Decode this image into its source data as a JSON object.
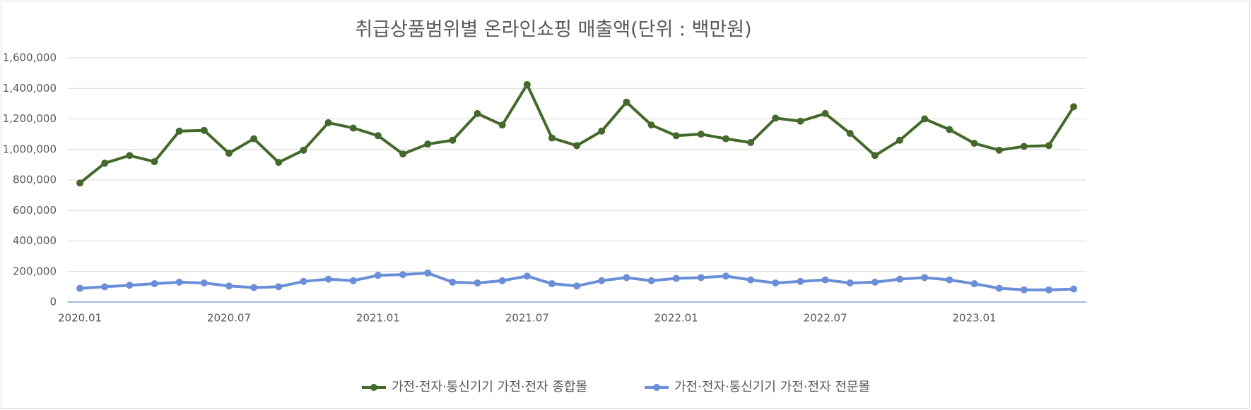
{
  "chart_data": {
    "type": "line",
    "title": "취급상품범위별 온라인쇼핑 매출액(단위 : 백만원)",
    "categories": [
      "2020.01",
      null,
      null,
      null,
      null,
      null,
      "2020.07",
      null,
      null,
      null,
      null,
      null,
      "2021.01",
      null,
      null,
      null,
      null,
      null,
      "2021.07",
      null,
      null,
      null,
      null,
      null,
      "2022.01",
      null,
      null,
      null,
      null,
      null,
      "2022.07",
      null,
      null,
      null,
      null,
      null,
      "2023.01",
      null,
      null,
      null,
      null
    ],
    "series": [
      {
        "name": "가전·전자·통신기기 가전·전자 종합몰",
        "color": "#44692a",
        "values": [
          780000,
          910000,
          960000,
          920000,
          1120000,
          1125000,
          975000,
          1070000,
          915000,
          995000,
          1175000,
          1140000,
          1090000,
          970000,
          1035000,
          1060000,
          1235000,
          1160000,
          1425000,
          1075000,
          1025000,
          1120000,
          1310000,
          1160000,
          1090000,
          1100000,
          1070000,
          1045000,
          1205000,
          1185000,
          1235000,
          1105000,
          960000,
          1060000,
          1200000,
          1130000,
          1040000,
          995000,
          1020000,
          1025000,
          1280000
        ]
      },
      {
        "name": "가전·전자·통신기기 가전·전자 전문몰",
        "color": "#6a8fd8",
        "values": [
          90000,
          100000,
          110000,
          120000,
          130000,
          125000,
          105000,
          95000,
          100000,
          135000,
          150000,
          140000,
          175000,
          180000,
          190000,
          130000,
          125000,
          140000,
          170000,
          120000,
          105000,
          140000,
          160000,
          140000,
          155000,
          160000,
          170000,
          145000,
          125000,
          135000,
          145000,
          125000,
          130000,
          150000,
          160000,
          145000,
          120000,
          90000,
          80000,
          80000,
          85000
        ]
      }
    ],
    "ylim": [
      0,
      1600000
    ],
    "yticks": [
      0,
      {
        "value": 200000,
        "label": "200,000"
      },
      {
        "value": 400000,
        "label": "400,000"
      },
      {
        "value": 600000,
        "label": "600,000"
      },
      {
        "value": 800000,
        "label": "800,000"
      },
      {
        "value": 1000000,
        "label": "1,000,000"
      },
      {
        "value": 1200000,
        "label": "1,200,000"
      },
      {
        "value": 1400000,
        "label": "1,400,000"
      },
      {
        "value": 1600000,
        "label": "1,600,000"
      }
    ],
    "grid": true,
    "legend": "bottom"
  }
}
